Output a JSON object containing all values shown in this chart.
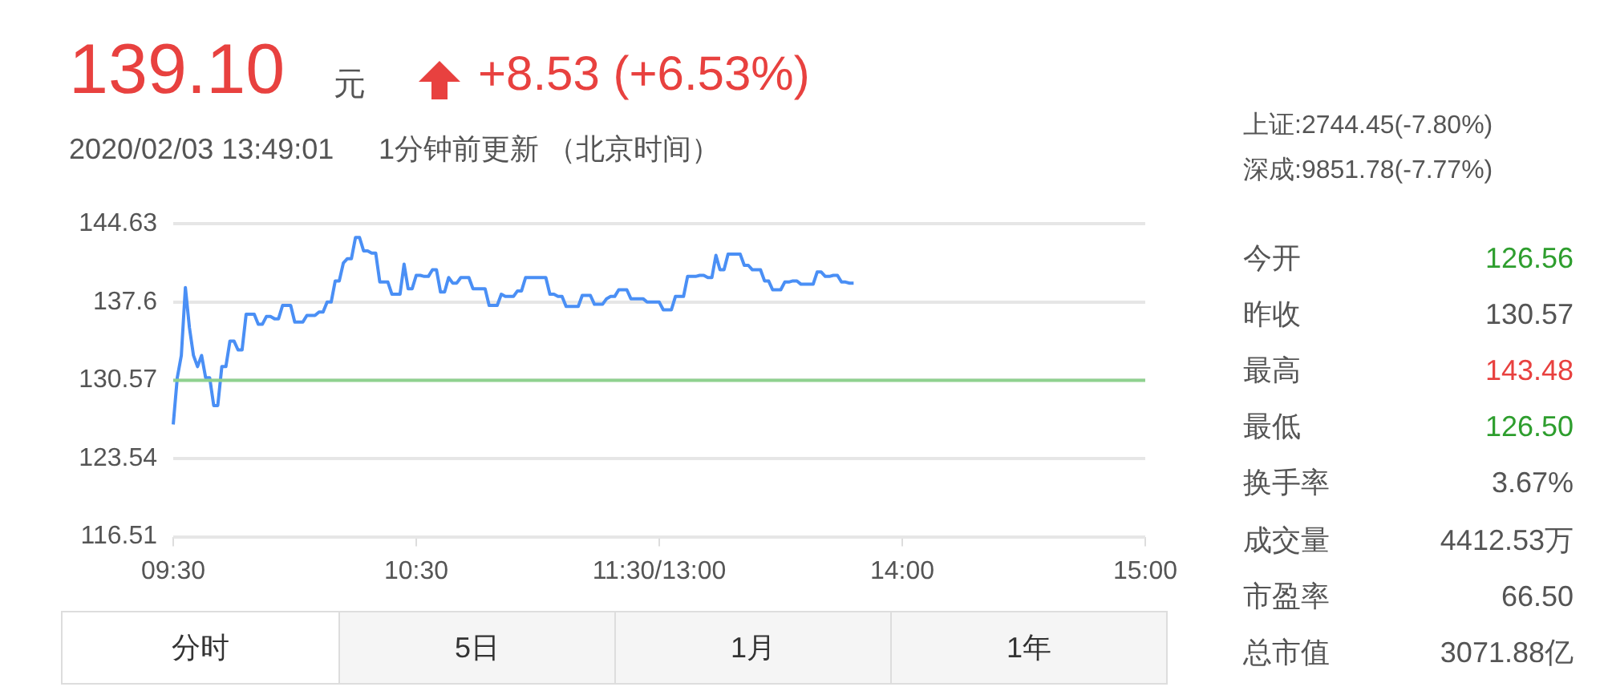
{
  "chart_data": [
    {
      "type": "other",
      "annotations": [
        "139.10",
        "元",
        "+8.53 (+6.53%)",
        "2020/02/03 13:49:01",
        "1分钟前更新 （北京时间）",
        "上证:2744.45(-7.80%)",
        "深成:9851.78(-7.77%)"
      ],
      "colors": [
        "#e8413f",
        "#555555",
        "#e8413f",
        "#555555",
        "#555555",
        "#555555",
        "#555555"
      ]
    },
    {
      "type": "line",
      "categories": [
        "09:30",
        null,
        null,
        null,
        null,
        null,
        null,
        null,
        null,
        null,
        null,
        null,
        null,
        null,
        null,
        null,
        null,
        null,
        null,
        null,
        null,
        null,
        null,
        null,
        null,
        null,
        null,
        null,
        null,
        null,
        null,
        null,
        null,
        null,
        null,
        null,
        null,
        null,
        null,
        null,
        null,
        null,
        null,
        null,
        null,
        null,
        null,
        null,
        null,
        null,
        null,
        null,
        null,
        null,
        null,
        null,
        null,
        null,
        null,
        null,
        "10:30",
        null,
        null,
        null,
        null,
        null,
        null,
        null,
        null,
        null,
        null,
        null,
        null,
        null,
        null,
        null,
        null,
        null,
        null,
        null,
        null,
        null,
        null,
        null,
        null,
        null,
        null,
        null,
        null,
        null,
        null,
        null,
        null,
        null,
        null,
        null,
        null,
        null,
        null,
        null,
        null,
        null,
        null,
        null,
        null,
        null,
        null,
        null,
        null,
        null,
        null,
        null,
        null,
        null,
        null,
        null,
        null,
        null,
        null,
        null,
        "11:30/13:00",
        null,
        null,
        null,
        null,
        null,
        null,
        null,
        null,
        null,
        null,
        null,
        null,
        null,
        null,
        null,
        null,
        null,
        null,
        null,
        null,
        null,
        null,
        null,
        null,
        null,
        null,
        null,
        null,
        null,
        null,
        null,
        null,
        null,
        null,
        null,
        null,
        null,
        null,
        null,
        null,
        null,
        null,
        null,
        null,
        null,
        null,
        null,
        null,
        null,
        null,
        null,
        null,
        null,
        null,
        null,
        null,
        null,
        null,
        null,
        "14:00",
        null,
        null,
        null,
        null,
        null,
        null,
        null,
        null,
        null,
        null,
        null,
        null,
        null,
        null,
        null,
        null,
        null,
        null,
        null,
        null,
        null,
        null,
        null,
        null,
        null,
        null,
        null,
        null,
        null,
        null,
        null,
        null,
        null,
        null,
        null,
        null,
        null,
        null,
        null,
        null,
        null,
        null,
        null,
        null,
        null,
        null,
        null,
        null,
        null,
        null,
        null,
        null,
        null,
        null,
        null,
        null,
        null,
        null,
        null,
        "15:00"
      ],
      "series": [
        {
          "color": "#4a8ff5",
          "values": [
            126.6,
            130.8,
            132.8,
            138.9,
            135.3,
            132.8,
            131.8,
            132.8,
            130.8,
            130.8,
            128.3,
            128.3,
            131.8,
            131.8,
            134.1,
            134.1,
            133.3,
            133.3,
            136.5,
            136.5,
            136.5,
            135.6,
            135.6,
            136.3,
            136.3,
            136.1,
            136.1,
            137.3,
            137.3,
            137.3,
            135.8,
            135.8,
            135.8,
            136.4,
            136.4,
            136.4,
            136.7,
            136.7,
            137.6,
            137.6,
            139.5,
            139.5,
            141.1,
            141.5,
            141.5,
            143.4,
            143.4,
            142.2,
            142.2,
            142.0,
            142.0,
            139.4,
            139.4,
            139.4,
            138.3,
            138.3,
            138.3,
            141.0,
            138.8,
            138.8,
            140.0,
            140.0,
            139.9,
            139.9,
            140.5,
            140.5,
            138.5,
            138.5,
            139.8,
            139.3,
            139.3,
            139.8,
            139.8,
            139.8,
            138.8,
            138.8,
            138.8,
            138.8,
            137.3,
            137.3,
            137.3,
            138.3,
            138.1,
            138.1,
            138.1,
            138.6,
            138.6,
            139.8,
            139.8,
            139.8,
            139.8,
            139.8,
            139.8,
            138.3,
            138.3,
            138.1,
            138.1,
            137.2,
            137.2,
            137.2,
            137.2,
            138.2,
            138.2,
            138.2,
            137.4,
            137.4,
            137.4,
            137.9,
            138.1,
            138.1,
            138.7,
            138.7,
            138.7,
            137.9,
            137.9,
            137.9,
            137.9,
            137.6,
            137.6,
            137.6,
            137.6,
            136.9,
            136.9,
            136.9,
            138.1,
            138.1,
            138.1,
            139.9,
            139.9,
            139.9,
            140.0,
            140.0,
            139.8,
            139.8,
            141.8,
            140.5,
            140.5,
            141.9,
            141.9,
            141.9,
            141.9,
            140.9,
            140.9,
            140.5,
            140.5,
            140.5,
            139.5,
            139.5,
            138.7,
            138.7,
            138.7,
            139.4,
            139.4,
            139.5,
            139.5,
            139.2,
            139.2,
            139.2,
            139.2,
            140.3,
            140.3,
            139.9,
            139.9,
            140.0,
            140.0,
            139.4,
            139.4,
            139.3,
            139.3,
            null,
            null,
            null,
            null,
            null,
            null,
            null,
            null,
            null,
            null,
            null,
            null,
            null,
            null,
            null,
            null,
            null,
            null,
            null,
            null,
            null,
            null,
            null,
            null,
            null,
            null,
            null,
            null,
            null,
            null,
            null,
            null,
            null,
            null,
            null,
            null,
            null,
            null,
            null,
            null,
            null,
            null,
            null,
            null,
            null,
            null,
            null,
            null,
            null,
            null,
            null,
            null,
            null,
            null,
            null,
            null,
            null,
            null,
            null,
            null,
            null,
            null,
            null,
            null,
            null,
            null,
            null,
            null,
            null,
            null,
            null,
            null
          ]
        }
      ],
      "ylim": [
        116.51,
        144.63
      ],
      "yticks": [
        116.51,
        123.54,
        130.57,
        137.6,
        144.63
      ],
      "grid": "y",
      "marker": "none",
      "legend": false,
      "ref_lines": [
        {
          "axis": "y",
          "value": 130.57,
          "color": "#8fd18f"
        }
      ]
    },
    {
      "type": "other",
      "annotations": [
        "分时",
        "5日",
        "1月",
        "1年"
      ]
    },
    {
      "type": "other",
      "annotations": [
        "今开",
        "126.56",
        "昨收",
        "130.57",
        "最高",
        "143.48",
        "最低",
        "126.50",
        "换手率",
        "3.67%",
        "成交量",
        "4412.53万",
        "市盈率",
        "66.50",
        "总市值",
        "3071.88亿"
      ],
      "colors": [
        "#555555",
        "#2e9e2e",
        "#555555",
        "#555555",
        "#555555",
        "#e8413f",
        "#555555",
        "#2e9e2e",
        "#555555",
        "#555555",
        "#555555",
        "#555555",
        "#555555",
        "#555555",
        "#555555",
        "#555555"
      ]
    }
  ]
}
